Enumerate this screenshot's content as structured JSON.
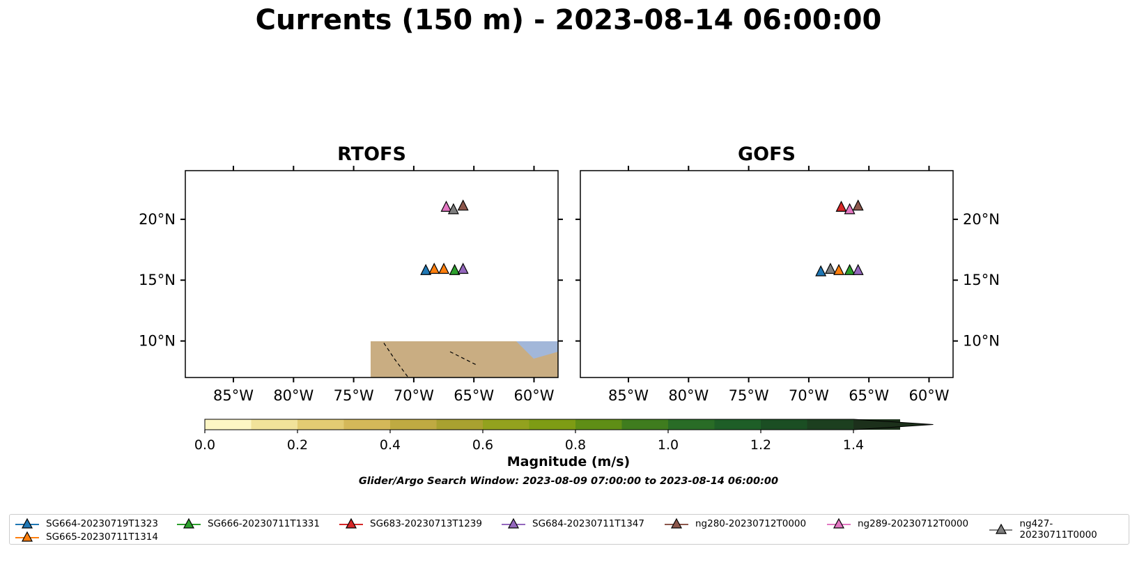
{
  "title": "Currents (150 m) - 2023-08-14 06:00:00",
  "panels": [
    {
      "title": "RTOFS"
    },
    {
      "title": "GOFS"
    }
  ],
  "axes": {
    "lon_ticks": [
      "85°W",
      "80°W",
      "75°W",
      "70°W",
      "65°W",
      "60°W"
    ],
    "lat_ticks": [
      "20°N",
      "15°N",
      "10°N"
    ],
    "lon_range": [
      -89,
      -58
    ],
    "lat_range": [
      7,
      24
    ]
  },
  "colorbar": {
    "label": "Magnitude (m/s)",
    "tick_labels": [
      "0.0",
      "0.2",
      "0.4",
      "0.6",
      "0.8",
      "1.0",
      "1.2",
      "1.4"
    ],
    "range": [
      0,
      1.5
    ],
    "step": 0.1,
    "extend": "max",
    "colors": [
      "#fdf6c4",
      "#f1e29a",
      "#e2cb73",
      "#d4b859",
      "#bfaa42",
      "#a9a130",
      "#93a21e",
      "#7e9c14",
      "#5f8e16",
      "#3f7c1e",
      "#296c26",
      "#1e5e27",
      "#1b4e23",
      "#1c3f1f",
      "#1c301b"
    ]
  },
  "search_window": "Glider/Argo Search Window: 2023-08-09 07:00:00 to 2023-08-14 06:00:00",
  "legend": [
    {
      "label": "SG664-20230719T1323",
      "color": "#1f77b4"
    },
    {
      "label": "SG665-20230711T1314",
      "color": "#ff7f0e"
    },
    {
      "label": "SG666-20230711T1331",
      "color": "#2ca02c"
    },
    {
      "label": "SG683-20230713T1239",
      "color": "#d62728"
    },
    {
      "label": "SG684-20230711T1347",
      "color": "#9467bd"
    },
    {
      "label": "ng280-20230712T0000",
      "color": "#8c564b"
    },
    {
      "label": "ng289-20230712T0000",
      "color": "#e377c2"
    },
    {
      "label": "ng427-20230711T0000",
      "color": "#7f7f7f"
    }
  ],
  "markers": [
    {
      "panel": 0,
      "lon": -69.0,
      "lat": 15.8,
      "color": "#1f77b4"
    },
    {
      "panel": 0,
      "lon": -68.3,
      "lat": 15.9,
      "color": "#ff7f0e"
    },
    {
      "panel": 0,
      "lon": -67.5,
      "lat": 15.9,
      "color": "#ff7f0e"
    },
    {
      "panel": 0,
      "lon": -66.6,
      "lat": 15.8,
      "color": "#2ca02c"
    },
    {
      "panel": 0,
      "lon": -65.9,
      "lat": 15.9,
      "color": "#9467bd"
    },
    {
      "panel": 0,
      "lon": -67.3,
      "lat": 21.0,
      "color": "#e377c2"
    },
    {
      "panel": 0,
      "lon": -66.7,
      "lat": 20.8,
      "color": "#7f7f7f"
    },
    {
      "panel": 0,
      "lon": -65.9,
      "lat": 21.1,
      "color": "#8c564b"
    },
    {
      "panel": 1,
      "lon": -69.0,
      "lat": 15.7,
      "color": "#1f77b4"
    },
    {
      "panel": 1,
      "lon": -68.2,
      "lat": 15.9,
      "color": "#7f7f7f"
    },
    {
      "panel": 1,
      "lon": -67.5,
      "lat": 15.8,
      "color": "#ff7f0e"
    },
    {
      "panel": 1,
      "lon": -66.6,
      "lat": 15.8,
      "color": "#2ca02c"
    },
    {
      "panel": 1,
      "lon": -65.9,
      "lat": 15.8,
      "color": "#9467bd"
    },
    {
      "panel": 1,
      "lon": -67.3,
      "lat": 21.0,
      "color": "#d62728"
    },
    {
      "panel": 1,
      "lon": -66.6,
      "lat": 20.8,
      "color": "#e377c2"
    },
    {
      "panel": 1,
      "lon": -65.9,
      "lat": 21.1,
      "color": "#8c564b"
    }
  ]
}
